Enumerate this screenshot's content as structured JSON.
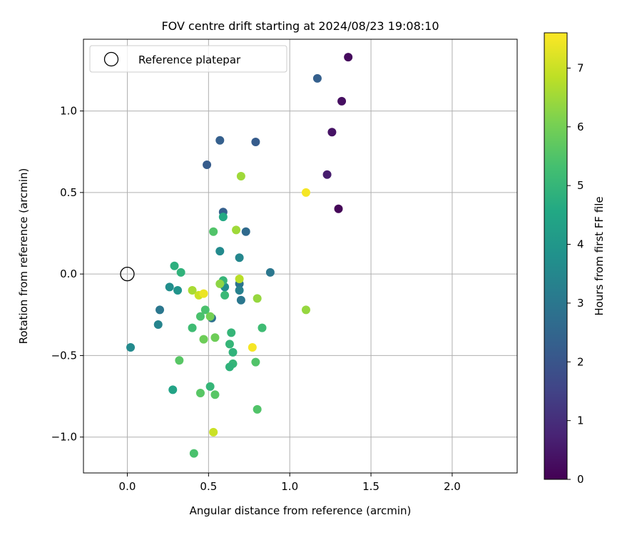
{
  "chart_data": {
    "type": "scatter",
    "title": "FOV centre drift starting at 2024/08/23 19:08:10",
    "xlabel": "Angular distance from reference (arcmin)",
    "ylabel": "Rotation from reference (arcmin)",
    "xlim": [
      -0.27,
      2.4
    ],
    "ylim": [
      -1.22,
      1.44
    ],
    "x_ticks": [
      0.0,
      0.5,
      1.0,
      1.5,
      2.0
    ],
    "x_tick_labels": [
      "0.0",
      "0.5",
      "1.0",
      "1.5",
      "2.0"
    ],
    "y_ticks": [
      -1.0,
      -0.5,
      0.0,
      0.5,
      1.0
    ],
    "y_tick_labels": [
      "−1.0",
      "−0.5",
      "0.0",
      "0.5",
      "1.0"
    ],
    "grid": true,
    "legend": {
      "placement": "top-left",
      "label": "Reference platepar"
    },
    "reference_point": {
      "x": 0.0,
      "y": 0.0
    },
    "colorbar": {
      "label": "Hours from first FF file",
      "colormap": "viridis",
      "range": [
        0,
        7.6
      ],
      "ticks": [
        0,
        1,
        2,
        3,
        4,
        5,
        6,
        7
      ],
      "tick_labels": [
        "0",
        "1",
        "2",
        "3",
        "4",
        "5",
        "6",
        "7"
      ]
    },
    "points": [
      {
        "x": 1.36,
        "y": 1.33,
        "c": 0.2
      },
      {
        "x": 1.32,
        "y": 1.06,
        "c": 0.3
      },
      {
        "x": 1.26,
        "y": 0.87,
        "c": 0.4
      },
      {
        "x": 1.23,
        "y": 0.61,
        "c": 0.6
      },
      {
        "x": 1.3,
        "y": 0.4,
        "c": 0.1
      },
      {
        "x": 1.17,
        "y": 1.2,
        "c": 2.3
      },
      {
        "x": 0.57,
        "y": 0.82,
        "c": 2.3
      },
      {
        "x": 0.79,
        "y": 0.81,
        "c": 2.2
      },
      {
        "x": 0.49,
        "y": 0.67,
        "c": 2.2
      },
      {
        "x": 0.59,
        "y": 0.38,
        "c": 2.3
      },
      {
        "x": 0.73,
        "y": 0.26,
        "c": 2.6
      },
      {
        "x": 0.88,
        "y": 0.01,
        "c": 3.0
      },
      {
        "x": 0.52,
        "y": -0.27,
        "c": 2.8
      },
      {
        "x": 0.69,
        "y": -0.06,
        "c": 2.9
      },
      {
        "x": 0.69,
        "y": -0.1,
        "c": 3.3
      },
      {
        "x": 0.7,
        "y": -0.16,
        "c": 3.0
      },
      {
        "x": 0.2,
        "y": -0.22,
        "c": 3.0
      },
      {
        "x": 0.19,
        "y": -0.31,
        "c": 3.4
      },
      {
        "x": 0.57,
        "y": 0.14,
        "c": 3.6
      },
      {
        "x": 0.69,
        "y": 0.1,
        "c": 3.5
      },
      {
        "x": 0.6,
        "y": -0.08,
        "c": 3.7
      },
      {
        "x": 0.02,
        "y": -0.45,
        "c": 3.6
      },
      {
        "x": 0.26,
        "y": -0.08,
        "c": 3.7
      },
      {
        "x": 0.31,
        "y": -0.1,
        "c": 3.9
      },
      {
        "x": 0.59,
        "y": 0.35,
        "c": 4.6
      },
      {
        "x": 0.28,
        "y": -0.71,
        "c": 4.4
      },
      {
        "x": 0.29,
        "y": 0.05,
        "c": 4.8
      },
      {
        "x": 0.33,
        "y": 0.01,
        "c": 4.9
      },
      {
        "x": 0.59,
        "y": -0.04,
        "c": 5.0
      },
      {
        "x": 0.6,
        "y": -0.13,
        "c": 5.1
      },
      {
        "x": 0.64,
        "y": -0.36,
        "c": 5.0
      },
      {
        "x": 0.63,
        "y": -0.43,
        "c": 5.0
      },
      {
        "x": 0.65,
        "y": -0.48,
        "c": 4.9
      },
      {
        "x": 0.65,
        "y": -0.55,
        "c": 5.0
      },
      {
        "x": 0.63,
        "y": -0.57,
        "c": 4.9
      },
      {
        "x": 0.51,
        "y": -0.69,
        "c": 5.0
      },
      {
        "x": 0.83,
        "y": -0.33,
        "c": 5.2
      },
      {
        "x": 0.79,
        "y": -0.54,
        "c": 5.5
      },
      {
        "x": 0.8,
        "y": -0.83,
        "c": 5.5
      },
      {
        "x": 0.53,
        "y": 0.26,
        "c": 5.5
      },
      {
        "x": 0.4,
        "y": -0.33,
        "c": 5.2
      },
      {
        "x": 0.45,
        "y": -0.26,
        "c": 5.4
      },
      {
        "x": 0.48,
        "y": -0.22,
        "c": 5.4
      },
      {
        "x": 0.32,
        "y": -0.53,
        "c": 5.6
      },
      {
        "x": 0.45,
        "y": -0.73,
        "c": 5.6
      },
      {
        "x": 0.54,
        "y": -0.74,
        "c": 5.6
      },
      {
        "x": 0.41,
        "y": -1.1,
        "c": 5.4
      },
      {
        "x": 0.54,
        "y": -0.39,
        "c": 5.9
      },
      {
        "x": 0.47,
        "y": -0.4,
        "c": 5.9
      },
      {
        "x": 0.51,
        "y": -0.26,
        "c": 6.0
      },
      {
        "x": 0.7,
        "y": 0.6,
        "c": 6.5
      },
      {
        "x": 0.67,
        "y": 0.27,
        "c": 6.5
      },
      {
        "x": 0.8,
        "y": -0.15,
        "c": 6.4
      },
      {
        "x": 1.1,
        "y": -0.22,
        "c": 6.4
      },
      {
        "x": 0.57,
        "y": -0.06,
        "c": 6.3
      },
      {
        "x": 0.4,
        "y": -0.1,
        "c": 6.6
      },
      {
        "x": 0.69,
        "y": -0.03,
        "c": 6.8
      },
      {
        "x": 0.44,
        "y": -0.13,
        "c": 7.0
      },
      {
        "x": 0.53,
        "y": -0.97,
        "c": 7.0
      },
      {
        "x": 0.47,
        "y": -0.12,
        "c": 7.4
      },
      {
        "x": 1.1,
        "y": 0.5,
        "c": 7.5
      },
      {
        "x": 0.77,
        "y": -0.45,
        "c": 7.5
      }
    ]
  }
}
